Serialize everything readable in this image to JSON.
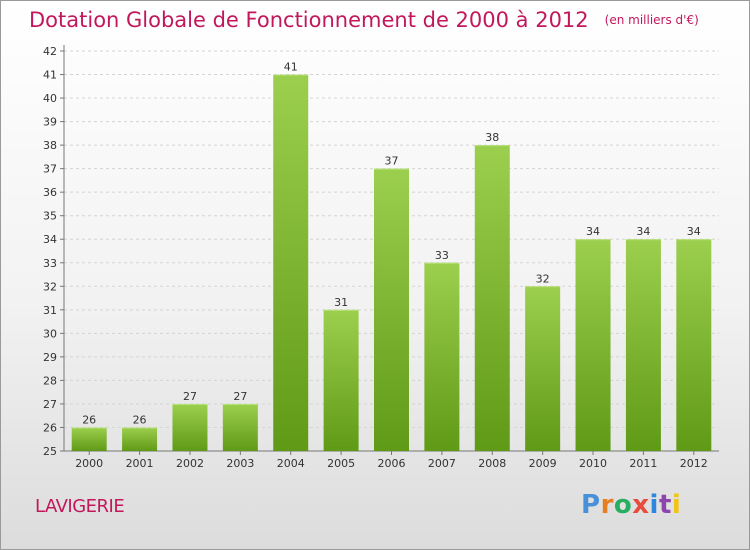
{
  "title": {
    "main": "Dotation Globale de Fonctionnement de 2000 à 2012",
    "unit": "(en milliers d'€)"
  },
  "commune": "LAVIGERIE",
  "logo": {
    "text": "Proxiti",
    "letter_colors": [
      "#4a90d9",
      "#e67e22",
      "#27ae60",
      "#e74c3c",
      "#2e86de",
      "#8e44ad",
      "#f1c40f"
    ]
  },
  "colors": {
    "title": "#c2185b",
    "bar_top": "#9ccf4e",
    "bar_bottom": "#5f9a16",
    "grid": "#d4d4d4",
    "axis": "#777777"
  },
  "chart_data": {
    "type": "bar",
    "categories": [
      "2000",
      "2001",
      "2002",
      "2003",
      "2004",
      "2005",
      "2006",
      "2007",
      "2008",
      "2009",
      "2010",
      "2011",
      "2012"
    ],
    "values": [
      26,
      26,
      27,
      27,
      41,
      31,
      37,
      33,
      38,
      32,
      34,
      34,
      34
    ],
    "title": "Dotation Globale de Fonctionnement de 2000 à 2012",
    "xlabel": "",
    "ylabel": "",
    "ylim": [
      25,
      42
    ],
    "yticks": [
      25,
      26,
      27,
      28,
      29,
      30,
      31,
      32,
      33,
      34,
      35,
      36,
      37,
      38,
      39,
      40,
      41,
      42
    ],
    "grid": "horizontal-dashed",
    "data_labels": true,
    "legend": "none"
  }
}
